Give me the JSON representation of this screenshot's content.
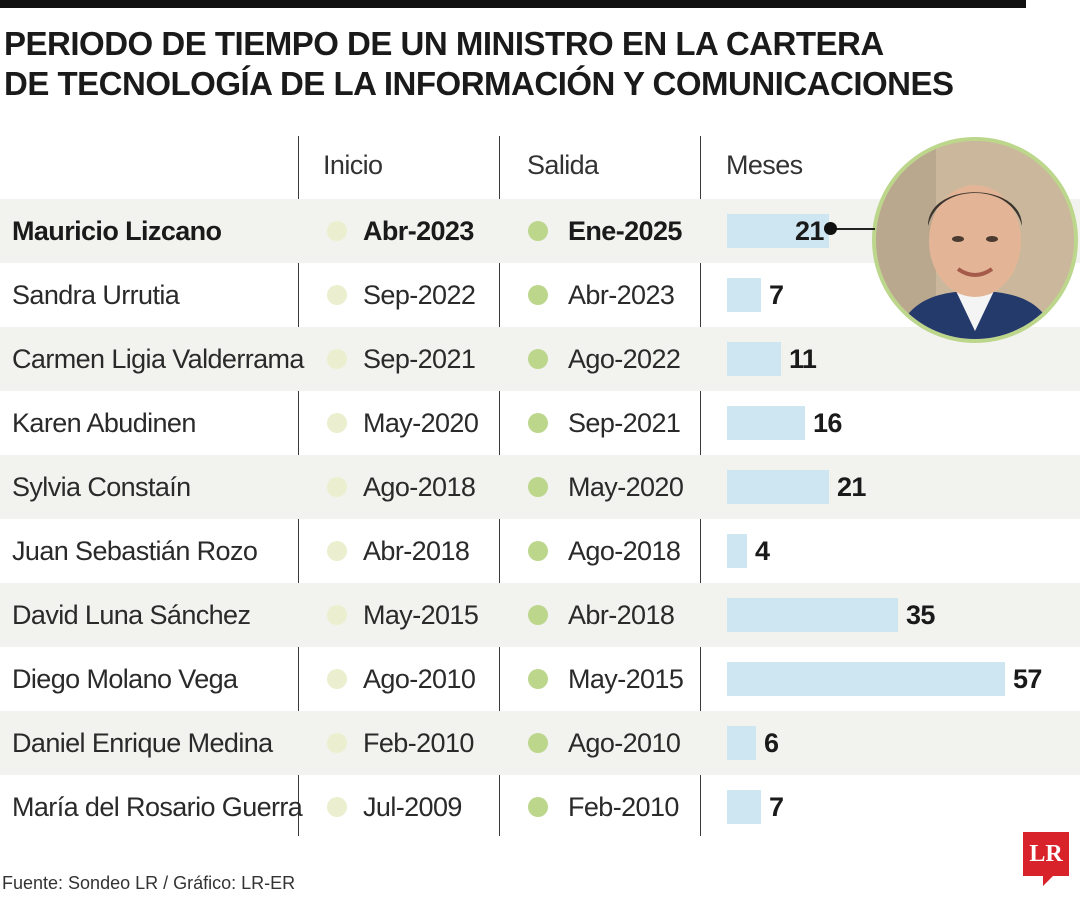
{
  "title_line1": "PERIODO DE TIEMPO DE UN MINISTRO EN LA CARTERA",
  "title_line2": "DE TECNOLOGÍA DE LA INFORMACIÓN Y COMUNICACIONES",
  "headers": {
    "inicio": "Inicio",
    "salida": "Salida",
    "meses": "Meses"
  },
  "source": "Fuente: Sondeo LR / Gráfico: LR-ER",
  "logo": "LR",
  "colors": {
    "bar": "#cde6f1",
    "start_dot": "#ebefcf",
    "end_dot": "#bcd68c",
    "row_alt": "#f2f3ee"
  },
  "chart_data": {
    "type": "bar",
    "orientation": "horizontal",
    "xlim": [
      0,
      57
    ],
    "grid": false,
    "categories": [
      "Mauricio Lizcano",
      "Sandra Urrutia",
      "Carmen Ligia Valderrama",
      "Karen Abudinen",
      "Sylvia Constaín",
      "Juan Sebastián Rozo",
      "David Luna Sánchez",
      "Diego Molano Vega",
      "Daniel Enrique Medina",
      "María del Rosario Guerra"
    ],
    "inicio": [
      "Abr-2023",
      "Sep-2022",
      "Sep-2021",
      "May-2020",
      "Ago-2018",
      "Abr-2018",
      "May-2015",
      "Ago-2010",
      "Feb-2010",
      "Jul-2009"
    ],
    "salida": [
      "Ene-2025",
      "Abr-2023",
      "Ago-2022",
      "Sep-2021",
      "May-2020",
      "Ago-2018",
      "Abr-2018",
      "May-2015",
      "Ago-2010",
      "Feb-2010"
    ],
    "values": [
      21,
      7,
      11,
      16,
      21,
      4,
      35,
      57,
      6,
      7
    ]
  }
}
